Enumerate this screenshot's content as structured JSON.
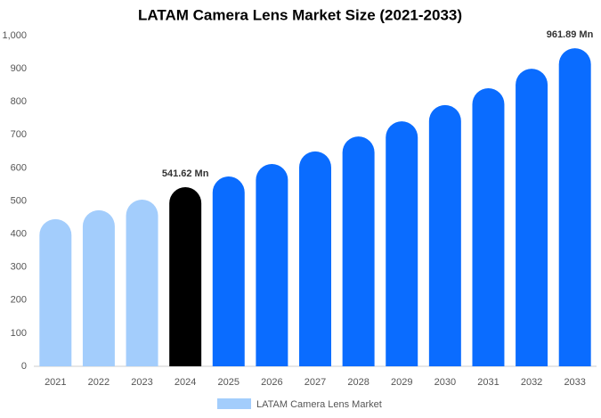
{
  "chart_data": {
    "type": "bar",
    "title": "LATAM Camera Lens Market Size (2021-2033)",
    "categories": [
      "2021",
      "2022",
      "2023",
      "2024",
      "2025",
      "2026",
      "2027",
      "2028",
      "2029",
      "2030",
      "2031",
      "2032",
      "2033"
    ],
    "series": [
      {
        "name": "LATAM Camera Lens Market",
        "color": "#a3cdfc",
        "values": [
          445,
          472,
          504,
          541.62,
          574,
          612,
          650,
          695,
          741,
          790,
          841,
          900,
          961.89
        ],
        "value_labels": [
          null,
          null,
          null,
          "541.62 Mn",
          null,
          null,
          null,
          null,
          null,
          null,
          null,
          null,
          "961.89 Mn"
        ],
        "colors": [
          "#a3cdfc",
          "#a3cdfc",
          "#a3cdfc",
          "#000000",
          "#0a6cff",
          "#0a6cff",
          "#0a6cff",
          "#0a6cff",
          "#0a6cff",
          "#0a6cff",
          "#0a6cff",
          "#0a6cff",
          "#0a6cff"
        ]
      }
    ],
    "ylim": [
      0,
      1000
    ],
    "yticks": [
      0,
      100,
      200,
      300,
      400,
      500,
      600,
      700,
      800,
      900,
      {
        "value": 1000,
        "label": "1,000"
      }
    ],
    "grid": false,
    "legend": "bottom"
  }
}
